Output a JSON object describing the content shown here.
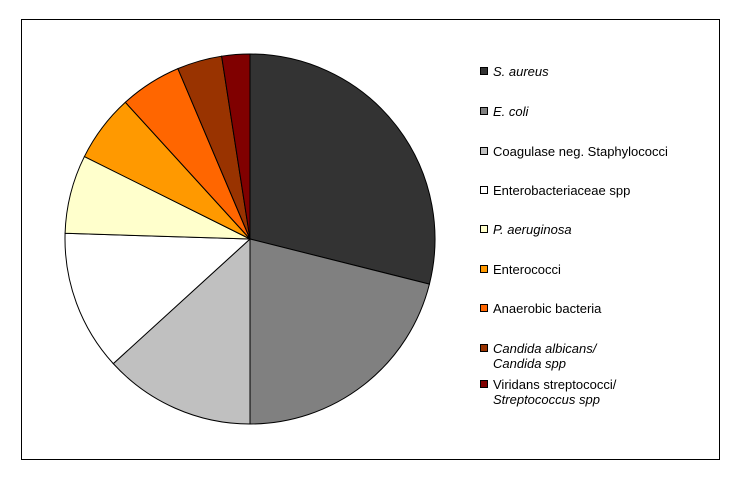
{
  "chart_data": {
    "type": "pie",
    "title": "",
    "categories": [
      "S. aureus",
      "E. coli",
      "Coagulase neg. Staphylococci",
      "Enterobacteriaceae spp",
      "P. aeruginosa",
      "Enterococci",
      "Anaerobic bacteria",
      "Candida albicans/\nCandida spp",
      "Viridans streptococci/\nStreptococcus spp"
    ],
    "values": [
      29.5,
      21.5,
      13.5,
      12.5,
      7.0,
      6.0,
      5.5,
      4.0,
      2.5
    ],
    "colors": [
      "#333333",
      "#808080",
      "#c0c0c0",
      "#ffffff",
      "#ffffcc",
      "#ff9900",
      "#ff6600",
      "#993300",
      "#800000"
    ],
    "italic": [
      true,
      true,
      false,
      false,
      true,
      false,
      false,
      true,
      "partial"
    ],
    "legend_position": "right",
    "start": "12 o'clock",
    "direction": "clockwise"
  },
  "legend": {
    "items": [
      {
        "label": "S. aureus",
        "color": "#333333"
      },
      {
        "label": "E. coli",
        "color": "#808080"
      },
      {
        "label": "Coagulase neg. Staphylococci",
        "color": "#c0c0c0"
      },
      {
        "label": "Enterobacteriaceae spp",
        "color": "#ffffff"
      },
      {
        "label": "P. aeruginosa",
        "color": "#ffffcc"
      },
      {
        "label": "Enterococci",
        "color": "#ff9900"
      },
      {
        "label": "Anaerobic bacteria",
        "color": "#ff6600"
      },
      {
        "label": "Candida albicans/\nCandida spp",
        "color": "#993300"
      },
      {
        "label": "Viridans streptococci/",
        "label2": "Streptococcus spp",
        "color": "#800000"
      }
    ]
  }
}
